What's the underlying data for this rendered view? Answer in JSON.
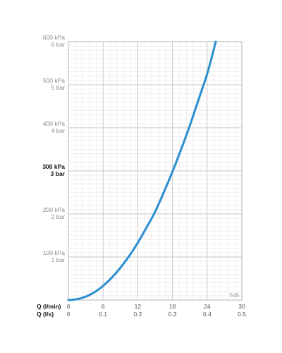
{
  "chart_data": {
    "type": "line",
    "title": "",
    "code": "546",
    "x_axis_primary": {
      "label": "Q (l/min)",
      "ticks": [
        "0",
        "6",
        "12",
        "18",
        "24",
        "30"
      ],
      "lim": [
        0,
        30
      ]
    },
    "x_axis_secondary": {
      "label": "Q (l/s)",
      "ticks": [
        "0",
        "0.1",
        "0.2",
        "0.3",
        "0.4",
        "0.5"
      ]
    },
    "y_axis": {
      "lim": [
        0,
        600
      ],
      "ticks": [
        {
          "value": 100,
          "kpa": "100 kPa",
          "bar": "1 bar",
          "highlight": false
        },
        {
          "value": 200,
          "kpa": "200 kPa",
          "bar": "2 bar",
          "highlight": false
        },
        {
          "value": 300,
          "kpa": "300 kPa",
          "bar": "3 bar",
          "highlight": true
        },
        {
          "value": 400,
          "kpa": "400 kPa",
          "bar": "4 bar",
          "highlight": false
        },
        {
          "value": 500,
          "kpa": "500 kPa",
          "bar": "5 bar",
          "highlight": false
        },
        {
          "value": 600,
          "kpa": "600 kPa",
          "bar": "6 bar",
          "highlight": false
        }
      ]
    },
    "grid": true,
    "series": [
      {
        "color": "#2a8fd0",
        "points": [
          [
            0,
            0
          ],
          [
            1.5,
            2
          ],
          [
            3,
            8
          ],
          [
            4.5,
            18
          ],
          [
            6,
            33
          ],
          [
            7.5,
            52
          ],
          [
            9,
            75
          ],
          [
            10.5,
            102
          ],
          [
            12,
            133
          ],
          [
            13.5,
            168
          ],
          [
            15,
            205
          ],
          [
            16.5,
            250
          ],
          [
            18,
            298
          ],
          [
            19.5,
            350
          ],
          [
            21,
            405
          ],
          [
            22.5,
            465
          ],
          [
            24,
            525
          ],
          [
            25.5,
            600
          ]
        ]
      }
    ]
  }
}
